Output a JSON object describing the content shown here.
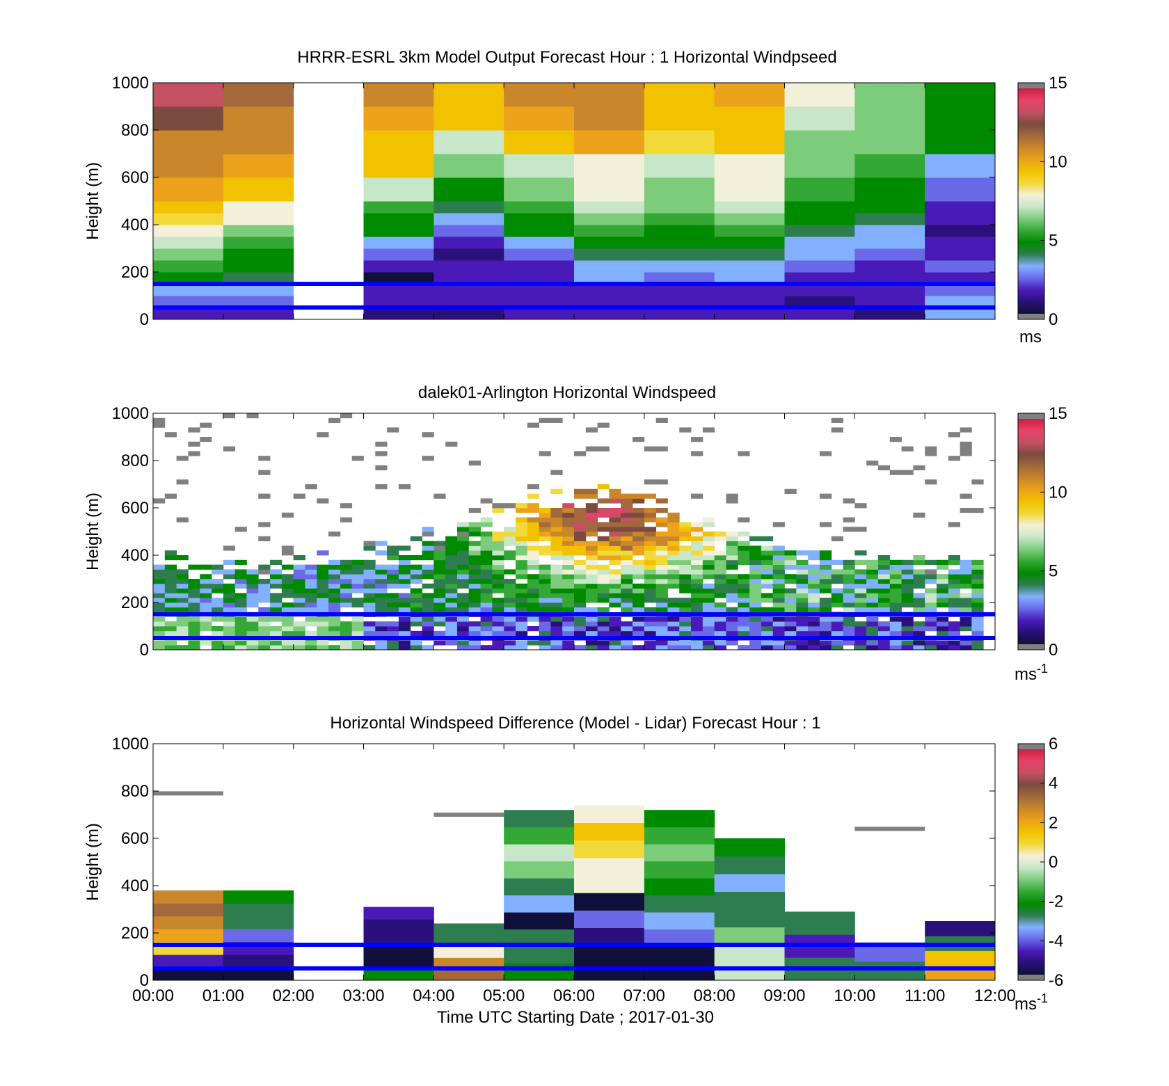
{
  "figure": {
    "x_ticks": [
      "00:00",
      "01:00",
      "02:00",
      "03:00",
      "04:00",
      "05:00",
      "06:00",
      "07:00",
      "08:00",
      "09:00",
      "10:00",
      "11:00",
      "12:00"
    ],
    "xlabel": "Time UTC  Starting Date ; 2017-01-30"
  },
  "panels": [
    {
      "title": "HRRR-ESRL 3km Model Output   Forecast Hour : 1 Horizontal Windpseed",
      "ylabel": "Height (m)",
      "unit": "ms",
      "unit_exp": "",
      "y_ticks": [
        "0",
        "200",
        "400",
        "600",
        "800",
        "1000"
      ],
      "cbar_ticks": [
        "0",
        "5",
        "10",
        "15"
      ]
    },
    {
      "title": "dalek01-Arlington  Horizontal Windspeed",
      "ylabel": "Height (m)",
      "unit": "ms",
      "unit_exp": "-1",
      "y_ticks": [
        "0",
        "200",
        "400",
        "600",
        "800",
        "1000"
      ],
      "cbar_ticks": [
        "0",
        "5",
        "10",
        "15"
      ]
    },
    {
      "title": "Horizontal Windspeed Difference (Model - Lidar) Forecast Hour : 1",
      "ylabel": "Height (m)",
      "unit": "ms",
      "unit_exp": "-1",
      "y_ticks": [
        "0",
        "200",
        "400",
        "600",
        "800",
        "1000"
      ],
      "cbar_ticks": [
        "-6",
        "-4",
        "-2",
        "0",
        "2",
        "4",
        "6"
      ]
    }
  ],
  "colors": {
    "reference_line": "#0000ff",
    "colormap": [
      "#11103a",
      "#2a107a",
      "#4a1ab8",
      "#6a6ae8",
      "#82b0ff",
      "#2e7d4f",
      "#008a00",
      "#34a834",
      "#7ccc7c",
      "#c8e6c8",
      "#f3f0da",
      "#f3d83a",
      "#f2c200",
      "#eca21a",
      "#c9862a",
      "#a3693b",
      "#7b4b3f",
      "#c45062",
      "#e8426a",
      "#cc1f42",
      "#808080"
    ]
  },
  "chart_data": [
    {
      "type": "heatmap",
      "title": "HRRR-ESRL 3km Model Output   Forecast Hour : 1 Horizontal Windpseed",
      "xlabel": "Time UTC  Starting Date ; 2017-01-30",
      "ylabel": "Height (m)",
      "xlim_hours": [
        0,
        12
      ],
      "ylim": [
        0,
        1000
      ],
      "clim": [
        0,
        15
      ],
      "colorbar_label": "ms",
      "grid": false,
      "reference_lines_m": [
        50,
        150
      ],
      "missing_hours": [
        2
      ],
      "level_heights_m": [
        25,
        75,
        125,
        175,
        225,
        275,
        325,
        375,
        425,
        475,
        550,
        650,
        750,
        850,
        950
      ],
      "hourly_profiles_ms": [
        [
          1.5,
          2.5,
          3.5,
          4.5,
          5.5,
          6.0,
          6.8,
          7.5,
          8.5,
          9.5,
          10,
          10.5,
          11,
          12,
          13
        ],
        [
          2.0,
          2.5,
          3.0,
          4.0,
          4.5,
          5.0,
          5.5,
          6.5,
          7.5,
          8.0,
          9.5,
          10,
          10.5,
          11,
          11.5
        ],
        null,
        [
          1.0,
          1.5,
          2.0,
          0.5,
          1.5,
          2.5,
          3.5,
          4.5,
          5.0,
          5.5,
          7.0,
          9.0,
          9.5,
          10,
          10.5
        ],
        [
          1.0,
          1.5,
          2.0,
          2.0,
          1.5,
          1.0,
          1.5,
          2.5,
          3.5,
          4.0,
          5.0,
          6.0,
          7.0,
          9.0,
          9.5
        ],
        [
          1.5,
          1.5,
          1.5,
          1.5,
          2.0,
          2.5,
          3.0,
          4.5,
          5.0,
          5.5,
          6.5,
          7.0,
          9.0,
          10,
          10.5
        ],
        [
          1.5,
          2.0,
          2.0,
          3.0,
          3.5,
          4.0,
          5.0,
          5.5,
          6.5,
          7.0,
          7.5,
          8.0,
          10,
          11,
          11
        ],
        [
          1.5,
          1.5,
          2.0,
          2.5,
          3.0,
          4.0,
          4.5,
          5.0,
          5.5,
          6.0,
          6.5,
          7.0,
          8.5,
          9.0,
          9.5
        ],
        [
          1.5,
          2.0,
          2.0,
          3.0,
          3.5,
          4.0,
          4.5,
          5.5,
          6.0,
          7.0,
          7.5,
          8.0,
          9.0,
          9.5,
          10
        ],
        [
          1.5,
          1.0,
          1.5,
          2.0,
          2.5,
          3.0,
          3.5,
          4.0,
          4.5,
          5.0,
          5.5,
          6.0,
          6.5,
          7.0,
          7.5
        ],
        [
          1.0,
          1.5,
          1.5,
          1.5,
          2.0,
          2.5,
          3.0,
          3.5,
          4.0,
          4.5,
          5.0,
          5.5,
          6.0,
          6.5,
          6.5
        ],
        [
          3.5,
          3.0,
          2.5,
          2.0,
          2.5,
          2.0,
          1.5,
          1.0,
          1.5,
          2.0,
          2.5,
          3.5,
          4.5,
          5.0,
          5.0
        ]
      ]
    },
    {
      "type": "heatmap",
      "title": "dalek01-Arlington  Horizontal Windspeed",
      "xlabel": "Time UTC  Starting Date ; 2017-01-30",
      "ylabel": "Height (m)",
      "xlim_hours": [
        0,
        12
      ],
      "ylim": [
        0,
        1000
      ],
      "clim": [
        0,
        15
      ],
      "colorbar_label": "ms-1",
      "grid": false,
      "reference_lines_m": [
        50,
        150
      ],
      "time_step_minutes": 10,
      "height_step_m": 20,
      "description_values": {
        "near_surface_0_200m_ms": "1 to 4 after 03:00, 5 to 7 before 03:00",
        "core_max_ms": 13,
        "core_time_span": [
          "04:30",
          "08:30"
        ],
        "core_height_span_m": [
          300,
          800
        ]
      }
    },
    {
      "type": "heatmap",
      "title": "Horizontal Windspeed Difference (Model - Lidar) Forecast Hour : 1",
      "xlabel": "Time UTC  Starting Date ; 2017-01-30",
      "ylabel": "Height (m)",
      "xlim_hours": [
        0,
        12
      ],
      "ylim": [
        0,
        1000
      ],
      "clim": [
        -6,
        6
      ],
      "colorbar_label": "ms-1",
      "grid": false,
      "reference_lines_m": [
        50,
        150
      ],
      "hourly_columns": [
        {
          "hour": 0,
          "top_m": 380,
          "values_ms": [
            -5.5,
            -4.5,
            1.0,
            2.0,
            2.5,
            3.0,
            2.5
          ],
          "outlier_m": 790
        },
        {
          "hour": 1,
          "top_m": 380,
          "values_ms": [
            -5.5,
            -5.0,
            -4.5,
            -4.0,
            -3.0,
            -2.5,
            -2.0
          ]
        },
        {
          "hour": 3,
          "top_m": 310,
          "values_ms": [
            -2.0,
            -6.0,
            -5.5,
            -5.0,
            -5.0,
            -4.5
          ]
        },
        {
          "hour": 4,
          "top_m": 240,
          "values_ms": [
            3.0,
            2.5,
            0.5,
            -2.5,
            -3.0
          ],
          "outlier_m": 700
        },
        {
          "hour": 5,
          "top_m": 720,
          "values_ms": [
            -2.0,
            -2.5,
            -3.0,
            -6.0,
            -3.5,
            -3.0,
            -1.0,
            -0.5,
            -1.5,
            -2.5
          ]
        },
        {
          "hour": 6,
          "top_m": 740,
          "values_ms": [
            -6.0,
            -6.0,
            -5.0,
            -4.0,
            -6.0,
            0.0,
            0.5,
            1.0,
            1.5,
            0.0
          ]
        },
        {
          "hour": 7,
          "top_m": 720,
          "values_ms": [
            -6.0,
            -5.5,
            -4.0,
            -3.5,
            -2.5,
            -2.0,
            -1.5,
            -1.0,
            -1.5,
            -2.0
          ]
        },
        {
          "hour": 8,
          "top_m": 600,
          "values_ms": [
            -0.5,
            -0.5,
            -1.0,
            -3.0,
            -3.0,
            -3.5,
            -2.5,
            -2.0
          ]
        },
        {
          "hour": 9,
          "top_m": 290,
          "values_ms": [
            -3.0,
            -4.5,
            -3.0
          ]
        },
        {
          "hour": 10,
          "top_m": 160,
          "values_ms": [
            -3.0,
            -4.0
          ],
          "outlier_m": 640
        },
        {
          "hour": 11,
          "top_m": 250,
          "values_ms": [
            2.0,
            1.5,
            -2.5,
            -5.0
          ]
        }
      ]
    }
  ]
}
